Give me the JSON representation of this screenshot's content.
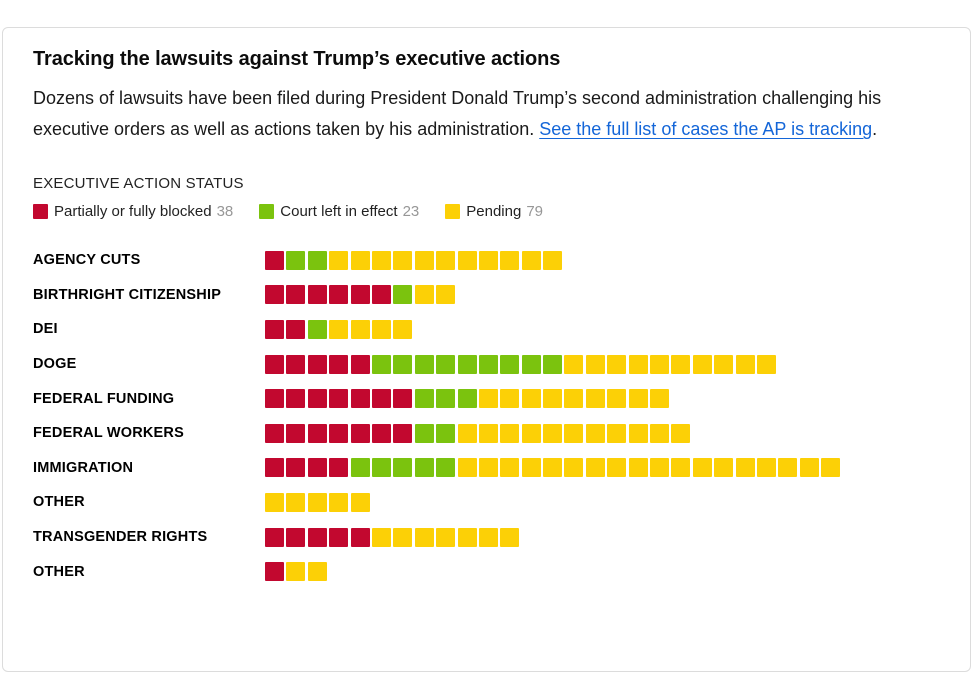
{
  "header": {
    "title": "Tracking the lawsuits against Trump’s executive actions",
    "description_lead": "Dozens of lawsuits have been filed during President Donald Trump’s second administration challenging his executive orders as well as actions taken by his administration. ",
    "link_text": "See the full list of cases the AP is tracking",
    "after_link": "."
  },
  "legend": {
    "heading": "EXECUTIVE ACTION STATUS",
    "items": [
      {
        "label": "Partially or fully blocked",
        "count": 38,
        "color": "#c2082f"
      },
      {
        "label": "Court left in effect",
        "count": 23,
        "color": "#7bc30e"
      },
      {
        "label": "Pending",
        "count": 79,
        "color": "#fcd006"
      }
    ]
  },
  "chart_data": {
    "type": "bar",
    "variant": "stacked-unit-squares",
    "title": "Tracking the lawsuits against Trump’s executive actions",
    "xlabel": "",
    "ylabel": "",
    "legend_position": "top",
    "grid": false,
    "categories": [
      "AGENCY CUTS",
      "BIRTHRIGHT CITIZENSHIP",
      "DEI",
      "DOGE",
      "FEDERAL FUNDING",
      "FEDERAL WORKERS",
      "IMMIGRATION",
      "OTHER",
      "TRANSGENDER RIGHTS",
      "OTHER"
    ],
    "series": [
      {
        "name": "Partially or fully blocked",
        "color": "#c2082f",
        "values": [
          1,
          6,
          2,
          5,
          7,
          7,
          4,
          0,
          5,
          1
        ]
      },
      {
        "name": "Court left in effect",
        "color": "#7bc30e",
        "values": [
          2,
          1,
          1,
          9,
          3,
          2,
          5,
          0,
          0,
          0
        ]
      },
      {
        "name": "Pending",
        "color": "#fcd006",
        "values": [
          11,
          2,
          4,
          10,
          9,
          11,
          18,
          5,
          7,
          2
        ]
      }
    ],
    "row_totals": [
      14,
      9,
      7,
      24,
      19,
      20,
      27,
      5,
      12,
      3
    ],
    "series_totals": {
      "Partially or fully blocked": 38,
      "Court left in effect": 23,
      "Pending": 79
    }
  }
}
